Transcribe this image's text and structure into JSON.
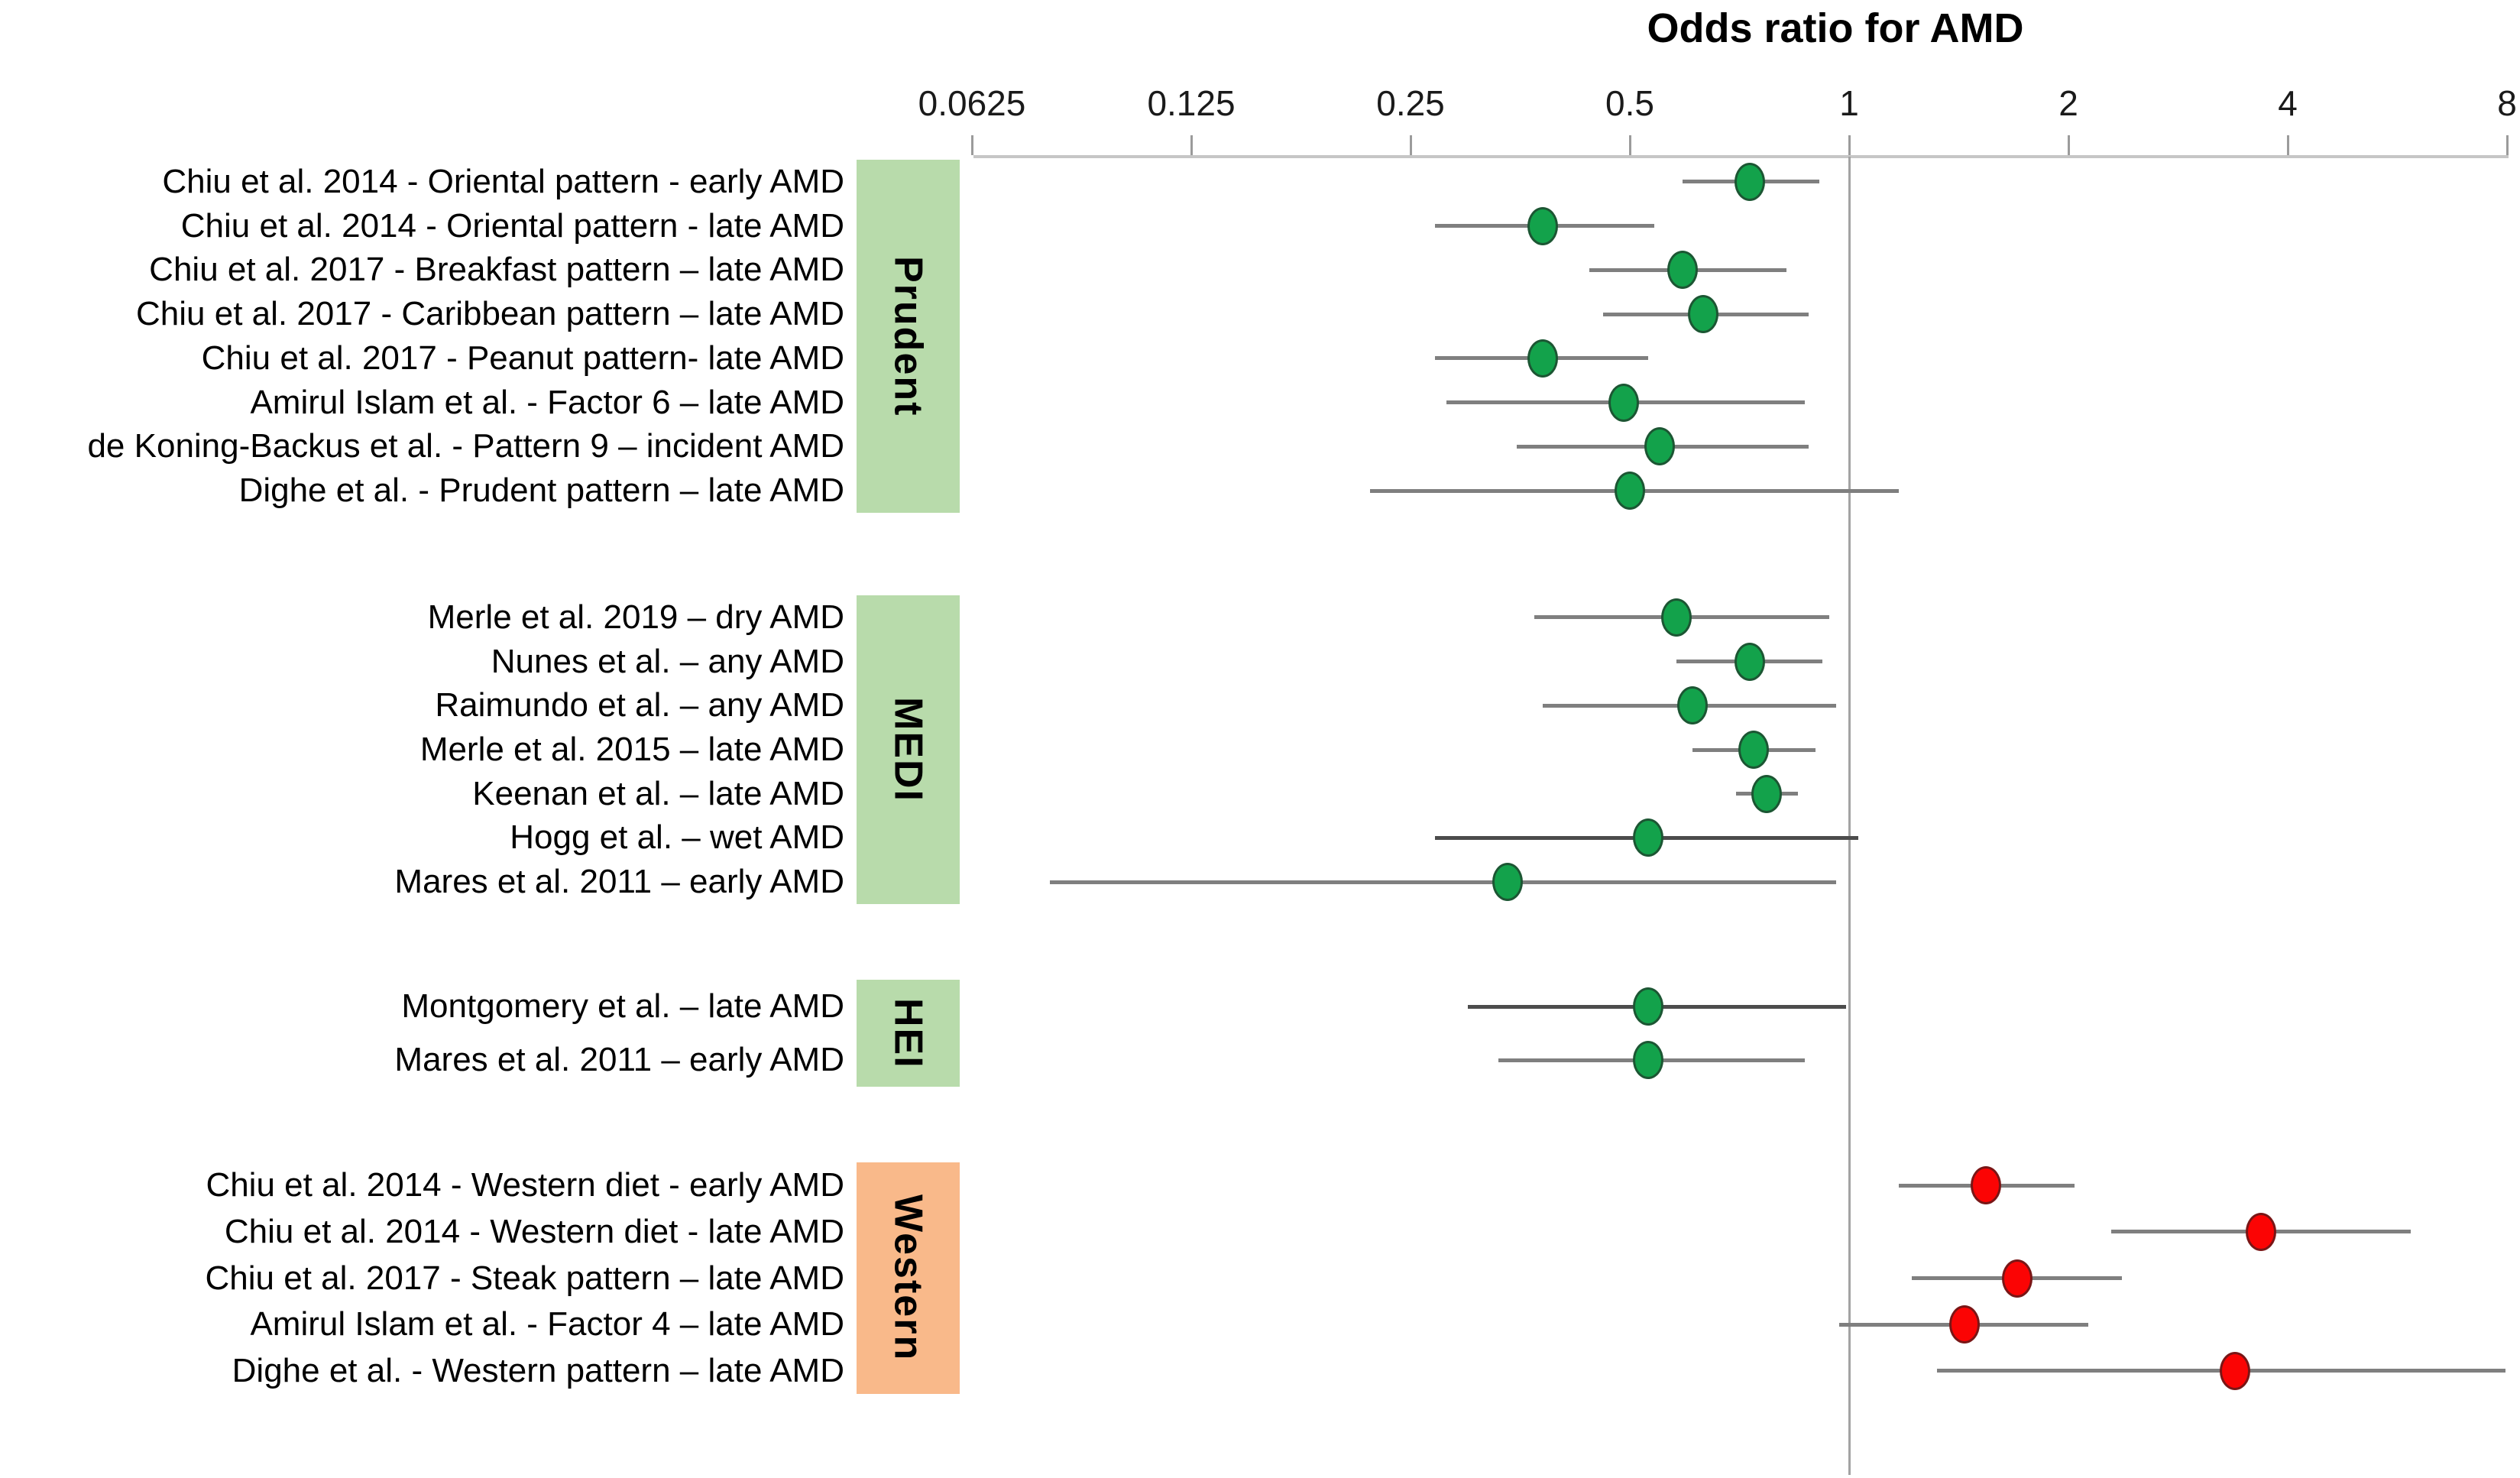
{
  "title": "Odds ratio for AMD",
  "colors": {
    "green_point": "#13a24b",
    "red_point": "#fb0404",
    "green_group_box": "#b8dbab",
    "orange_group_box": "#f9b98a",
    "ci_line": "#7f7f7f",
    "ci_line_dark": "#4c4c4c",
    "axis_line": "#c6c6c6",
    "reference_line": "#a3a3a3"
  },
  "chart_data": {
    "type": "scatter",
    "subtype": "forest-plot",
    "title": "Odds ratio for AMD",
    "x_axis": {
      "scale": "log2",
      "tick_labels": [
        "0.0625",
        "0.125",
        "0.25",
        "0.5",
        "1",
        "2",
        "4",
        "8"
      ],
      "tick_values": [
        0.0625,
        0.125,
        0.25,
        0.5,
        1,
        2,
        4,
        8
      ],
      "range": [
        0.0625,
        8
      ],
      "reference_line": 1,
      "grid": false
    },
    "legend": "none",
    "groups": [
      {
        "label": "Prudent",
        "box_color": "green",
        "point_color": "green",
        "studies": [
          {
            "label": "Chiu et al. 2014 - Oriental pattern - early AMD",
            "or": 0.73,
            "ci_low": 0.59,
            "ci_high": 0.91
          },
          {
            "label": "Chiu et al. 2014 - Oriental pattern - late AMD",
            "or": 0.38,
            "ci_low": 0.27,
            "ci_high": 0.54
          },
          {
            "label": "Chiu et al. 2017 - Breakfast pattern – late AMD",
            "or": 0.59,
            "ci_low": 0.44,
            "ci_high": 0.82
          },
          {
            "label": "Chiu et al. 2017 - Caribbean pattern – late AMD",
            "or": 0.63,
            "ci_low": 0.46,
            "ci_high": 0.88
          },
          {
            "label": "Chiu et al. 2017 - Peanut pattern- late AMD",
            "or": 0.38,
            "ci_low": 0.27,
            "ci_high": 0.53
          },
          {
            "label": "Amirul Islam et al. - Factor 6 – late AMD",
            "or": 0.49,
            "ci_low": 0.28,
            "ci_high": 0.87
          },
          {
            "label": "de Koning-Backus et al. - Pattern 9 – incident AMD",
            "or": 0.55,
            "ci_low": 0.35,
            "ci_high": 0.88
          },
          {
            "label": "Dighe et al. - Prudent pattern – late AMD",
            "or": 0.5,
            "ci_low": 0.22,
            "ci_high": 1.17
          }
        ]
      },
      {
        "label": "MEDI",
        "box_color": "green",
        "point_color": "green",
        "studies": [
          {
            "label": "Merle et al. 2019 – dry AMD",
            "or": 0.58,
            "ci_low": 0.37,
            "ci_high": 0.94
          },
          {
            "label": "Nunes et al. – any AMD",
            "or": 0.73,
            "ci_low": 0.58,
            "ci_high": 0.92
          },
          {
            "label": "Raimundo et al. – any AMD",
            "or": 0.61,
            "ci_low": 0.38,
            "ci_high": 0.96
          },
          {
            "label": "Merle et al. 2015 – late AMD",
            "or": 0.74,
            "ci_low": 0.61,
            "ci_high": 0.9
          },
          {
            "label": "Keenan et al. – late AMD",
            "or": 0.77,
            "ci_low": 0.7,
            "ci_high": 0.85
          },
          {
            "label": "Hogg et al. – wet AMD",
            "or": 0.53,
            "ci_low": 0.27,
            "ci_high": 1.03,
            "dark_line": true
          },
          {
            "label": "Mares et al. 2011 – early AMD",
            "or": 0.34,
            "ci_low": 0.08,
            "ci_high": 0.96
          }
        ]
      },
      {
        "label": "HEI",
        "box_color": "green",
        "point_color": "green",
        "studies": [
          {
            "label": "Montgomery et al. – late AMD",
            "or": 0.53,
            "ci_low": 0.3,
            "ci_high": 0.99,
            "dark_line": true
          },
          {
            "label": "Mares et al. 2011 – early AMD",
            "or": 0.53,
            "ci_low": 0.33,
            "ci_high": 0.87
          }
        ]
      },
      {
        "label": "Western",
        "box_color": "orange",
        "point_color": "red",
        "studies": [
          {
            "label": "Chiu et al. 2014 - Western diet - early AMD",
            "or": 1.54,
            "ci_low": 1.17,
            "ci_high": 2.04
          },
          {
            "label": "Chiu et al. 2014 - Western diet - late AMD",
            "or": 3.68,
            "ci_low": 2.29,
            "ci_high": 5.9
          },
          {
            "label": "Chiu et al. 2017 - Steak pattern – late AMD",
            "or": 1.7,
            "ci_low": 1.22,
            "ci_high": 2.37
          },
          {
            "label": "Amirul Islam et al. - Factor 4 – late AMD",
            "or": 1.44,
            "ci_low": 0.97,
            "ci_high": 2.13
          },
          {
            "label": "Dighe et al. - Western pattern – late AMD",
            "or": 3.39,
            "ci_low": 1.32,
            "ci_high": 7.96
          }
        ]
      }
    ]
  }
}
